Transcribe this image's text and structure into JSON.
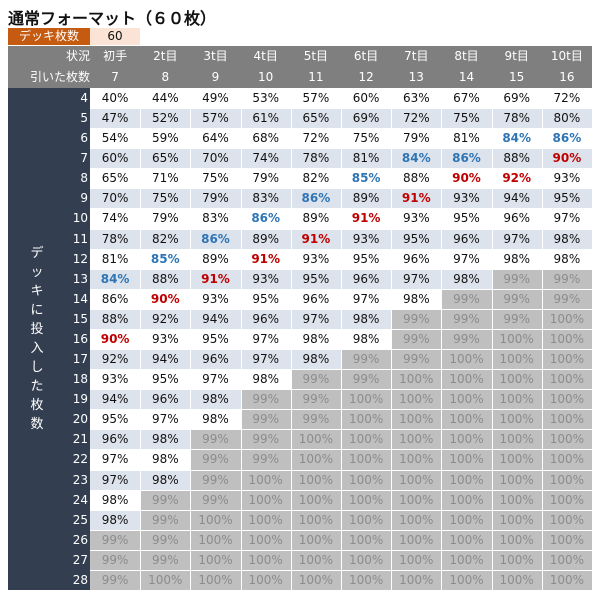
{
  "title": "通常フォーマット（６０枚）",
  "deck": {
    "label": "デッキ枚数",
    "value": "60"
  },
  "header": {
    "status_label": "状況",
    "drawn_label": "引いた枚数",
    "columns": [
      {
        "turn": "初手",
        "drawn": "7"
      },
      {
        "turn": "2t目",
        "drawn": "8"
      },
      {
        "turn": "3t目",
        "drawn": "9"
      },
      {
        "turn": "4t目",
        "drawn": "10"
      },
      {
        "turn": "5t目",
        "drawn": "11"
      },
      {
        "turn": "6t目",
        "drawn": "12"
      },
      {
        "turn": "7t目",
        "drawn": "13"
      },
      {
        "turn": "8t目",
        "drawn": "14"
      },
      {
        "turn": "9t目",
        "drawn": "15"
      },
      {
        "turn": "10t目",
        "drawn": "16"
      }
    ]
  },
  "row_axis_label": [
    "デ",
    "ッ",
    "キ",
    "に",
    "投",
    "入",
    "し",
    "た",
    "枚",
    "数"
  ],
  "colors": {
    "deck_label_bg": "#c55a11",
    "deck_value_bg": "#fbe4d5",
    "header_bg": "#7f7f7f",
    "row_label_bg": "#333f50",
    "highlight_blue": "#2e75b6",
    "highlight_red": "#c00000",
    "saturated_bg": "#bfbfbf"
  },
  "rows": [
    {
      "count": "4",
      "values": [
        "40%",
        "44%",
        "49%",
        "53%",
        "57%",
        "60%",
        "63%",
        "67%",
        "69%",
        "72%"
      ]
    },
    {
      "count": "5",
      "values": [
        "47%",
        "52%",
        "57%",
        "61%",
        "65%",
        "69%",
        "72%",
        "75%",
        "78%",
        "80%"
      ]
    },
    {
      "count": "6",
      "values": [
        "54%",
        "59%",
        "64%",
        "68%",
        "72%",
        "75%",
        "79%",
        "81%",
        "84%",
        "86%"
      ]
    },
    {
      "count": "7",
      "values": [
        "60%",
        "65%",
        "70%",
        "74%",
        "78%",
        "81%",
        "84%",
        "86%",
        "88%",
        "90%"
      ]
    },
    {
      "count": "8",
      "values": [
        "65%",
        "71%",
        "75%",
        "79%",
        "82%",
        "85%",
        "88%",
        "90%",
        "92%",
        "93%"
      ]
    },
    {
      "count": "9",
      "values": [
        "70%",
        "75%",
        "79%",
        "83%",
        "86%",
        "89%",
        "91%",
        "93%",
        "94%",
        "95%"
      ]
    },
    {
      "count": "10",
      "values": [
        "74%",
        "79%",
        "83%",
        "86%",
        "89%",
        "91%",
        "93%",
        "95%",
        "96%",
        "97%"
      ]
    },
    {
      "count": "11",
      "values": [
        "78%",
        "82%",
        "86%",
        "89%",
        "91%",
        "93%",
        "95%",
        "96%",
        "97%",
        "98%"
      ]
    },
    {
      "count": "12",
      "values": [
        "81%",
        "85%",
        "89%",
        "91%",
        "93%",
        "95%",
        "96%",
        "97%",
        "98%",
        "98%"
      ]
    },
    {
      "count": "13",
      "values": [
        "84%",
        "88%",
        "91%",
        "93%",
        "95%",
        "96%",
        "97%",
        "98%",
        "99%",
        "99%"
      ]
    },
    {
      "count": "14",
      "values": [
        "86%",
        "90%",
        "93%",
        "95%",
        "96%",
        "97%",
        "98%",
        "99%",
        "99%",
        "99%"
      ]
    },
    {
      "count": "15",
      "values": [
        "88%",
        "92%",
        "94%",
        "96%",
        "97%",
        "98%",
        "99%",
        "99%",
        "99%",
        "100%"
      ]
    },
    {
      "count": "16",
      "values": [
        "90%",
        "93%",
        "95%",
        "97%",
        "98%",
        "98%",
        "99%",
        "99%",
        "100%",
        "100%"
      ]
    },
    {
      "count": "17",
      "values": [
        "92%",
        "94%",
        "96%",
        "97%",
        "98%",
        "99%",
        "99%",
        "100%",
        "100%",
        "100%"
      ]
    },
    {
      "count": "18",
      "values": [
        "93%",
        "95%",
        "97%",
        "98%",
        "99%",
        "99%",
        "100%",
        "100%",
        "100%",
        "100%"
      ]
    },
    {
      "count": "19",
      "values": [
        "94%",
        "96%",
        "98%",
        "99%",
        "99%",
        "100%",
        "100%",
        "100%",
        "100%",
        "100%"
      ]
    },
    {
      "count": "20",
      "values": [
        "95%",
        "97%",
        "98%",
        "99%",
        "99%",
        "100%",
        "100%",
        "100%",
        "100%",
        "100%"
      ]
    },
    {
      "count": "21",
      "values": [
        "96%",
        "98%",
        "99%",
        "99%",
        "100%",
        "100%",
        "100%",
        "100%",
        "100%",
        "100%"
      ]
    },
    {
      "count": "22",
      "values": [
        "97%",
        "98%",
        "99%",
        "99%",
        "100%",
        "100%",
        "100%",
        "100%",
        "100%",
        "100%"
      ]
    },
    {
      "count": "23",
      "values": [
        "97%",
        "98%",
        "99%",
        "100%",
        "100%",
        "100%",
        "100%",
        "100%",
        "100%",
        "100%"
      ]
    },
    {
      "count": "24",
      "values": [
        "98%",
        "99%",
        "99%",
        "100%",
        "100%",
        "100%",
        "100%",
        "100%",
        "100%",
        "100%"
      ]
    },
    {
      "count": "25",
      "values": [
        "98%",
        "99%",
        "100%",
        "100%",
        "100%",
        "100%",
        "100%",
        "100%",
        "100%",
        "100%"
      ]
    },
    {
      "count": "26",
      "values": [
        "99%",
        "99%",
        "100%",
        "100%",
        "100%",
        "100%",
        "100%",
        "100%",
        "100%",
        "100%"
      ]
    },
    {
      "count": "27",
      "values": [
        "99%",
        "99%",
        "100%",
        "100%",
        "100%",
        "100%",
        "100%",
        "100%",
        "100%",
        "100%"
      ]
    },
    {
      "count": "28",
      "values": [
        "99%",
        "100%",
        "100%",
        "100%",
        "100%",
        "100%",
        "100%",
        "100%",
        "100%",
        "100%"
      ]
    }
  ]
}
